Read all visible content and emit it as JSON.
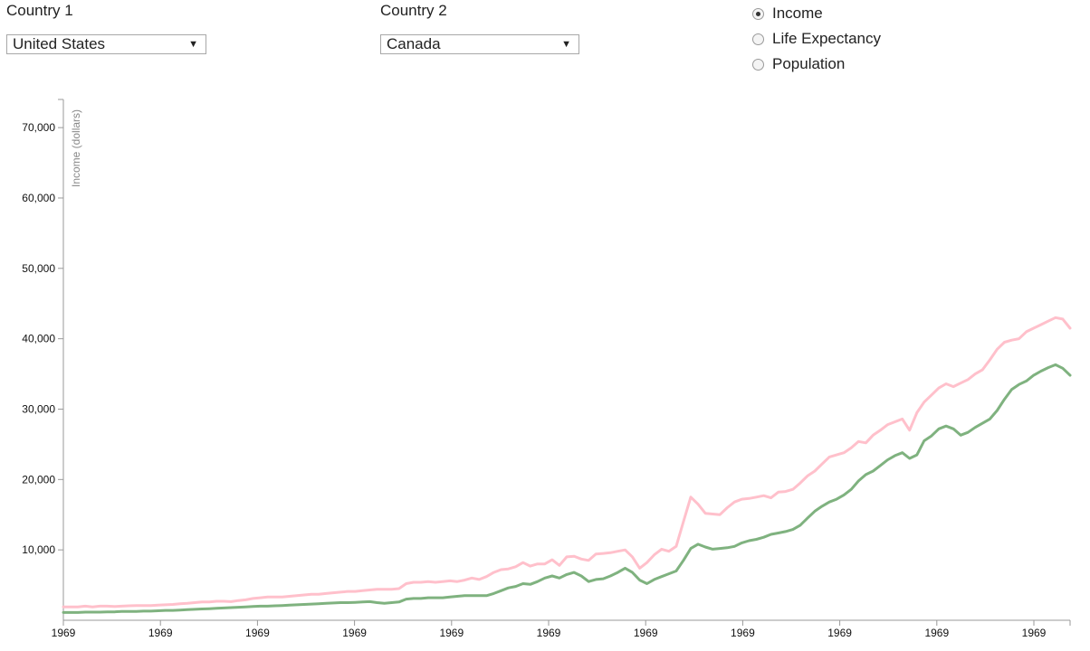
{
  "controls": {
    "country1": {
      "label": "Country 1",
      "value": "United States"
    },
    "country2": {
      "label": "Country 2",
      "value": "Canada"
    },
    "metrics": [
      {
        "label": "Income",
        "checked": true
      },
      {
        "label": "Life Expectancy",
        "checked": false
      },
      {
        "label": "Population",
        "checked": false
      }
    ]
  },
  "chart_data": {
    "type": "line",
    "ylabel": "Income (dollars)",
    "ylim": [
      0,
      74000
    ],
    "yticks": [
      10000,
      20000,
      30000,
      40000,
      50000,
      60000,
      70000
    ],
    "ytick_labels": [
      "10,000",
      "20,000",
      "30,000",
      "40,000",
      "50,000",
      "60,000",
      "70,000"
    ],
    "xtick_labels": [
      "1969",
      "1969",
      "1969",
      "1969",
      "1969",
      "1969",
      "1969",
      "1969",
      "1969",
      "1969",
      "1969"
    ],
    "grid": false,
    "series": [
      {
        "color": "#ffc0cb",
        "values": [
          1900,
          1900,
          1900,
          2000,
          1900,
          2000,
          2000,
          1950,
          2000,
          2050,
          2100,
          2100,
          2100,
          2150,
          2200,
          2250,
          2350,
          2400,
          2500,
          2600,
          2600,
          2700,
          2700,
          2650,
          2800,
          2900,
          3100,
          3200,
          3300,
          3300,
          3300,
          3400,
          3500,
          3600,
          3700,
          3700,
          3800,
          3900,
          4000,
          4100,
          4100,
          4200,
          4300,
          4400,
          4400,
          4400,
          4500,
          5200,
          5400,
          5400,
          5500,
          5400,
          5500,
          5600,
          5500,
          5700,
          6000,
          5800,
          6200,
          6800,
          7200,
          7300,
          7600,
          8200,
          7700,
          8000,
          8000,
          8600,
          7800,
          9000,
          9100,
          8700,
          8500,
          9400,
          9500,
          9600,
          9800,
          10000,
          9000,
          7400,
          8200,
          9300,
          10100,
          9800,
          10500,
          14000,
          17500,
          16500,
          15200,
          15100,
          15000,
          16000,
          16800,
          17200,
          17300,
          17500,
          17700,
          17400,
          18200,
          18300,
          18600,
          19500,
          20500,
          21200,
          22200,
          23200,
          23500,
          23800,
          24500,
          25400,
          25200,
          26300,
          27000,
          27800,
          28200,
          28600,
          27000,
          29500,
          31000,
          32000,
          33000,
          33600,
          33200,
          33700,
          34200,
          35000,
          35600,
          37000,
          38500,
          39500,
          39800,
          40000,
          41000,
          41500,
          42000,
          42500,
          43000,
          42800,
          41500
        ]
      },
      {
        "color": "#7fb27f",
        "values": [
          1100,
          1100,
          1100,
          1150,
          1150,
          1150,
          1200,
          1200,
          1250,
          1250,
          1250,
          1300,
          1300,
          1350,
          1400,
          1400,
          1450,
          1500,
          1550,
          1600,
          1650,
          1700,
          1750,
          1800,
          1850,
          1900,
          1950,
          2000,
          2000,
          2050,
          2100,
          2150,
          2200,
          2250,
          2300,
          2350,
          2400,
          2450,
          2500,
          2500,
          2550,
          2600,
          2650,
          2500,
          2400,
          2500,
          2600,
          3000,
          3100,
          3100,
          3200,
          3200,
          3200,
          3300,
          3400,
          3500,
          3500,
          3500,
          3500,
          3800,
          4200,
          4600,
          4800,
          5200,
          5100,
          5500,
          6000,
          6300,
          6000,
          6500,
          6800,
          6300,
          5500,
          5800,
          5900,
          6300,
          6800,
          7400,
          6800,
          5700,
          5200,
          5800,
          6200,
          6600,
          7000,
          8500,
          10200,
          10800,
          10400,
          10100,
          10200,
          10300,
          10500,
          11000,
          11300,
          11500,
          11800,
          12200,
          12400,
          12600,
          12900,
          13500,
          14500,
          15500,
          16200,
          16800,
          17200,
          17800,
          18600,
          19800,
          20700,
          21200,
          22000,
          22800,
          23400,
          23800,
          23000,
          23500,
          25500,
          26200,
          27200,
          27600,
          27200,
          26300,
          26700,
          27400,
          28000,
          28600,
          29800,
          31400,
          32800,
          33500,
          34000,
          34800,
          35400,
          35900,
          36300,
          35800,
          34800
        ]
      }
    ]
  }
}
